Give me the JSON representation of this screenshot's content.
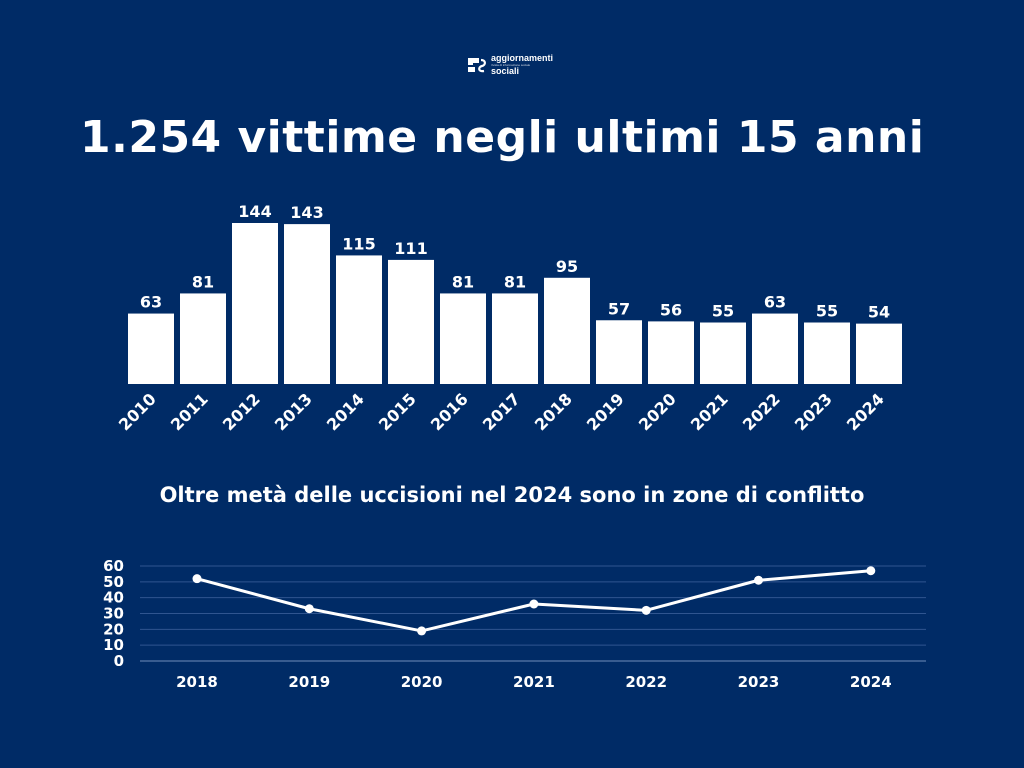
{
  "brand": {
    "name_line1": "aggiornamenti",
    "name_line2": "sociali",
    "tagline": "rivista di informazione sociale"
  },
  "colors": {
    "background": "#002b66",
    "foreground": "#ffffff",
    "gridline": "#2f5590"
  },
  "icons": {
    "logo": "aggiornamenti-sociali-logo"
  },
  "chart_data": [
    {
      "type": "bar",
      "title": "1.254 vittime negli ultimi 15 anni",
      "categories": [
        "2010",
        "2011",
        "2012",
        "2013",
        "2014",
        "2015",
        "2016",
        "2017",
        "2018",
        "2019",
        "2020",
        "2021",
        "2022",
        "2023",
        "2024"
      ],
      "values": [
        63,
        81,
        144,
        143,
        115,
        111,
        81,
        81,
        95,
        57,
        56,
        55,
        63,
        55,
        54
      ],
      "xlabel": "",
      "ylabel": "",
      "ylim": [
        0,
        144
      ],
      "data_labels": true,
      "grid": false
    },
    {
      "type": "line",
      "title": "Oltre metà delle uccisioni nel 2024 sono in zone di conflitto",
      "x": [
        "2018",
        "2019",
        "2020",
        "2021",
        "2022",
        "2023",
        "2024"
      ],
      "values": [
        52,
        33,
        19,
        36,
        32,
        51,
        57
      ],
      "yticks": [
        0,
        10,
        20,
        30,
        40,
        50,
        60
      ],
      "ylim": [
        0,
        60
      ],
      "xlabel": "",
      "ylabel": "",
      "grid": true
    }
  ]
}
